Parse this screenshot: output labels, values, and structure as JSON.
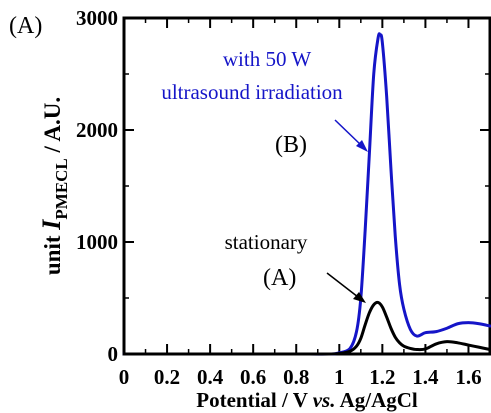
{
  "panel_label": "(A)",
  "chart_data": {
    "type": "line",
    "xlabel_parts": [
      "Potential / V ",
      "vs.",
      " Ag/AgCl"
    ],
    "ylabel_parts": [
      "unit ",
      "I",
      "PMECL",
      " / A.U."
    ],
    "xlim": [
      0,
      1.7
    ],
    "ylim": [
      0,
      3000
    ],
    "xticks": [
      "0",
      "0.2",
      "0.4",
      "0.6",
      "0.8",
      "1",
      "1.2",
      "1.4",
      "1.6"
    ],
    "yticks": [
      "0",
      "1000",
      "2000",
      "3000"
    ],
    "colors": {
      "ultrasound": "#1515c8",
      "stationary": "#000000"
    },
    "series": [
      {
        "name": "with 50 W ultrasound irradiation",
        "label": "(B)",
        "x": [
          0,
          0.2,
          0.4,
          0.6,
          0.8,
          0.95,
          1.0,
          1.05,
          1.08,
          1.1,
          1.12,
          1.14,
          1.16,
          1.18,
          1.19,
          1.2,
          1.22,
          1.24,
          1.26,
          1.28,
          1.3,
          1.33,
          1.36,
          1.4,
          1.45,
          1.5,
          1.55,
          1.6,
          1.65,
          1.7
        ],
        "y": [
          0,
          0,
          0,
          0,
          0,
          0,
          10,
          50,
          200,
          500,
          1100,
          1800,
          2500,
          2820,
          2850,
          2780,
          2300,
          1650,
          1050,
          620,
          400,
          220,
          160,
          190,
          200,
          230,
          270,
          280,
          270,
          250
        ]
      },
      {
        "name": "stationary",
        "label": "(A)",
        "x": [
          0,
          0.2,
          0.4,
          0.6,
          0.8,
          0.95,
          1.0,
          1.05,
          1.08,
          1.1,
          1.12,
          1.14,
          1.16,
          1.18,
          1.2,
          1.22,
          1.24,
          1.26,
          1.28,
          1.3,
          1.33,
          1.36,
          1.4,
          1.45,
          1.5,
          1.55,
          1.6,
          1.65,
          1.7
        ],
        "y": [
          0,
          0,
          0,
          0,
          0,
          0,
          5,
          25,
          70,
          140,
          260,
          370,
          440,
          460,
          420,
          330,
          230,
          150,
          100,
          70,
          50,
          40,
          45,
          90,
          110,
          100,
          80,
          60,
          40
        ]
      }
    ],
    "annotations": [
      {
        "lines": [
          "with 50 W",
          "ultrasound irradiation"
        ],
        "color": "#1515c8"
      },
      {
        "text": "(B)",
        "color": "#000000"
      },
      {
        "text": "stationary",
        "color": "#000000"
      },
      {
        "text": "(A)",
        "color": "#000000"
      }
    ]
  }
}
